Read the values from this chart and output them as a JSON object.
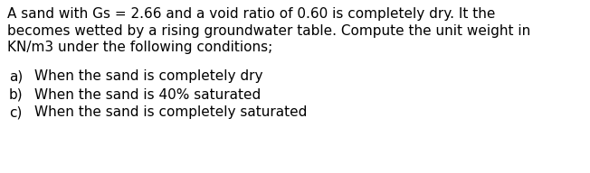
{
  "background_color": "#ffffff",
  "text_color": "#000000",
  "line1": "A sand with Gs = 2.66 and a void ratio of 0.60 is completely dry. It the",
  "line2": "becomes wetted by a rising groundwater table. Compute the unit weight in",
  "line3": "KN/m3 under the following conditions;",
  "item_a_label": "a)",
  "item_a_text": "When the sand is completely dry",
  "item_b_label": "b)",
  "item_b_text": "When the sand is 40% saturated",
  "item_c_label": "c)",
  "item_c_text": "When the sand is completely saturated",
  "font_family": "DejaVu Sans",
  "fontsize": 11.0,
  "fig_width": 6.52,
  "fig_height": 1.92,
  "dpi": 100
}
